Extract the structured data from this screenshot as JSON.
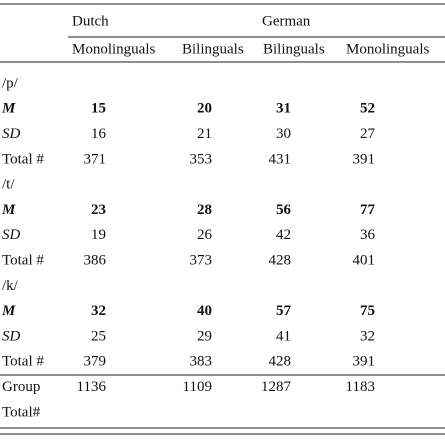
{
  "table": {
    "group_headers": [
      "Dutch",
      "German"
    ],
    "column_headers": [
      "Monolinguals",
      "Bilinguals",
      "Bilinguals",
      "Monolinguals"
    ],
    "rows": [
      {
        "label": "/p/"
      },
      {
        "label": "M",
        "values": [
          15,
          20,
          31,
          52
        ]
      },
      {
        "label": "SD",
        "values": [
          16,
          21,
          30,
          27
        ]
      },
      {
        "label": "Total #",
        "values": [
          371,
          353,
          431,
          391
        ]
      },
      {
        "label": "/t/"
      },
      {
        "label": "M",
        "values": [
          23,
          28,
          56,
          77
        ]
      },
      {
        "label": "SD",
        "values": [
          19,
          26,
          42,
          36
        ]
      },
      {
        "label": "Total #",
        "values": [
          386,
          373,
          428,
          401
        ]
      },
      {
        "label": "/k/"
      },
      {
        "label": "M",
        "values": [
          32,
          40,
          57,
          75
        ]
      },
      {
        "label": "SD",
        "values": [
          25,
          29,
          41,
          32
        ]
      },
      {
        "label": "Total #",
        "values": [
          379,
          383,
          428,
          391
        ]
      },
      {
        "label": "Group",
        "values": [
          1136,
          1109,
          1287,
          1183
        ]
      },
      {
        "label": "Total#"
      }
    ]
  }
}
